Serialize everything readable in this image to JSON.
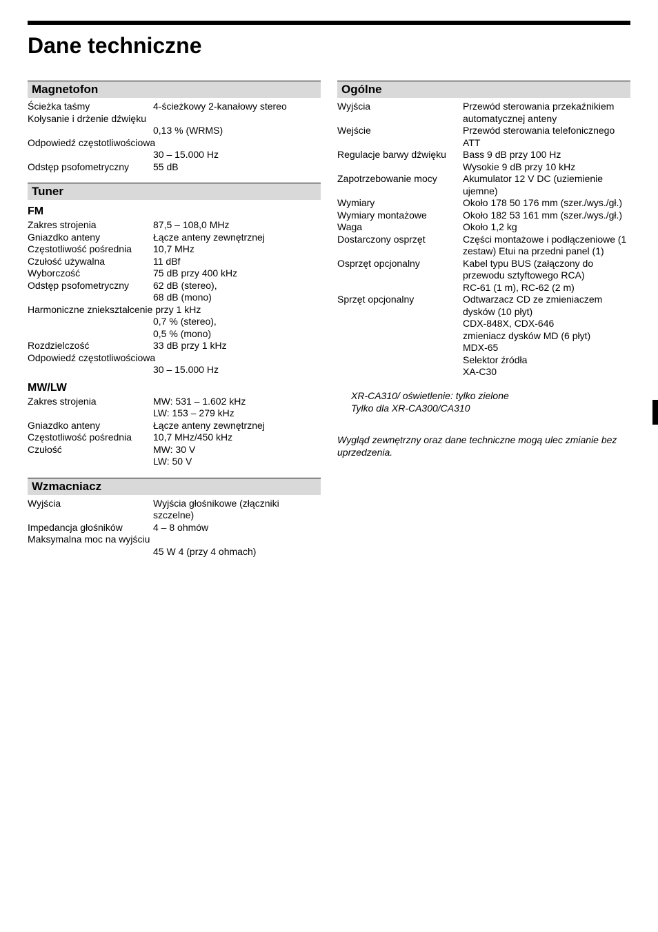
{
  "title": "Dane techniczne",
  "left": {
    "sec1": {
      "header": "Magnetofon",
      "rows": [
        {
          "label": "Ścieżka taśmy",
          "value": "4-ścieżkowy 2-kanałowy stereo"
        },
        {
          "label": "Kołysanie i drżenie dźwięku",
          "value": ""
        },
        {
          "label": "",
          "value": "0,13 % (WRMS)"
        },
        {
          "label": "Odpowiedź częstotliwościowa",
          "value": ""
        },
        {
          "label": "",
          "value": "30 – 15.000 Hz"
        },
        {
          "label": "Odstęp psofometryczny",
          "value": "55 dB"
        }
      ]
    },
    "sec2": {
      "header": "Tuner",
      "sub1": "FM",
      "rows1": [
        {
          "label": "Zakres strojenia",
          "value": "87,5 – 108,0 MHz"
        },
        {
          "label": "Gniazdko anteny",
          "value": "Łącze anteny zewnętrznej"
        },
        {
          "label": "Częstotliwość pośrednia",
          "value": "10,7 MHz"
        },
        {
          "label": "Czułość używalna",
          "value": "11 dBf"
        },
        {
          "label": "Wyborczość",
          "value": "75 dB przy 400 kHz"
        },
        {
          "label": "Odstęp psofometryczny",
          "value": "62 dB (stereo),"
        },
        {
          "label": "",
          "value": "68 dB (mono)"
        },
        {
          "label": "Harmoniczne zniekształcenie przy 1 kHz",
          "value": ""
        },
        {
          "label": "",
          "value": "0,7 % (stereo),"
        },
        {
          "label": "",
          "value": "0,5 % (mono)"
        },
        {
          "label": "Rozdzielczość",
          "value": "33 dB przy 1 kHz"
        },
        {
          "label": "Odpowiedź częstotliwościowa",
          "value": ""
        },
        {
          "label": "",
          "value": "30 – 15.000 Hz"
        }
      ],
      "sub2": "MW/LW",
      "rows2": [
        {
          "label": "Zakres strojenia",
          "value": "MW: 531 – 1.602 kHz"
        },
        {
          "label": "",
          "value": "LW: 153 – 279 kHz"
        },
        {
          "label": "Gniazdko anteny",
          "value": "Łącze anteny zewnętrznej"
        },
        {
          "label": "Częstotliwość pośrednia",
          "value": "10,7 MHz/450 kHz"
        },
        {
          "label": "Czułość",
          "value": "MW: 30   V"
        },
        {
          "label": "",
          "value": "LW: 50   V"
        }
      ]
    },
    "sec3": {
      "header": "Wzmacniacz",
      "rows": [
        {
          "label": "Wyjścia",
          "value": "Wyjścia głośnikowe (złączniki szczelne)"
        },
        {
          "label": "Impedancja głośników",
          "value": "4 – 8 ohmów"
        },
        {
          "label": "Maksymalna moc na wyjściu",
          "value": ""
        },
        {
          "label": "",
          "value": "45 W    4 (przy 4 ohmach)"
        }
      ]
    }
  },
  "right": {
    "sec1": {
      "header": "Ogólne",
      "rows": [
        {
          "label": "Wyjścia",
          "value": "Przewód sterowania przekaźnikiem automatycznej anteny"
        },
        {
          "label": "Wejście",
          "value": "Przewód sterowania telefonicznego ATT"
        },
        {
          "label": "Regulacje barwy dźwięku",
          "value": "Bass   9 dB przy 100 Hz"
        },
        {
          "label": "",
          "value": "Wysokie   9 dB przy 10 kHz"
        },
        {
          "label": "Zapotrzebowanie mocy",
          "value": "Akumulator 12 V DC (uziemienie ujemne)"
        },
        {
          "label": "Wymiary",
          "value": "Około 178    50    176 mm (szer./wys./gł.)"
        },
        {
          "label": "Wymiary montażowe",
          "value": "Około 182    53    161 mm (szer./wys./gł.)"
        },
        {
          "label": "Waga",
          "value": "Około 1,2 kg"
        },
        {
          "label": "Dostarczony osprzęt",
          "value": "Części montażowe i podłączeniowe (1 zestaw) Etui na przedni panel (1)"
        },
        {
          "label": "Osprzęt opcjonalny",
          "value": "Kabel typu BUS (załączony do przewodu sztyftowego RCA)\nRC-61 (1 m), RC-62 (2 m)"
        },
        {
          "label": "Sprzęt opcjonalny",
          "value": "Odtwarzacz CD ze zmieniaczem dysków (10 płyt)\n    CDX-848X, CDX-646\nzmieniacz dysków MD (6 płyt)\n    MDX-65\nSelektor źródła\n    XA-C30"
        }
      ]
    },
    "note1": "XR-CA310/ oświetlenie: tylko zielone\nTylko dla XR-CA300/CA310",
    "note2": "Wygląd zewnętrzny oraz dane techniczne mogą ulec zmianie bez uprzedzenia."
  }
}
